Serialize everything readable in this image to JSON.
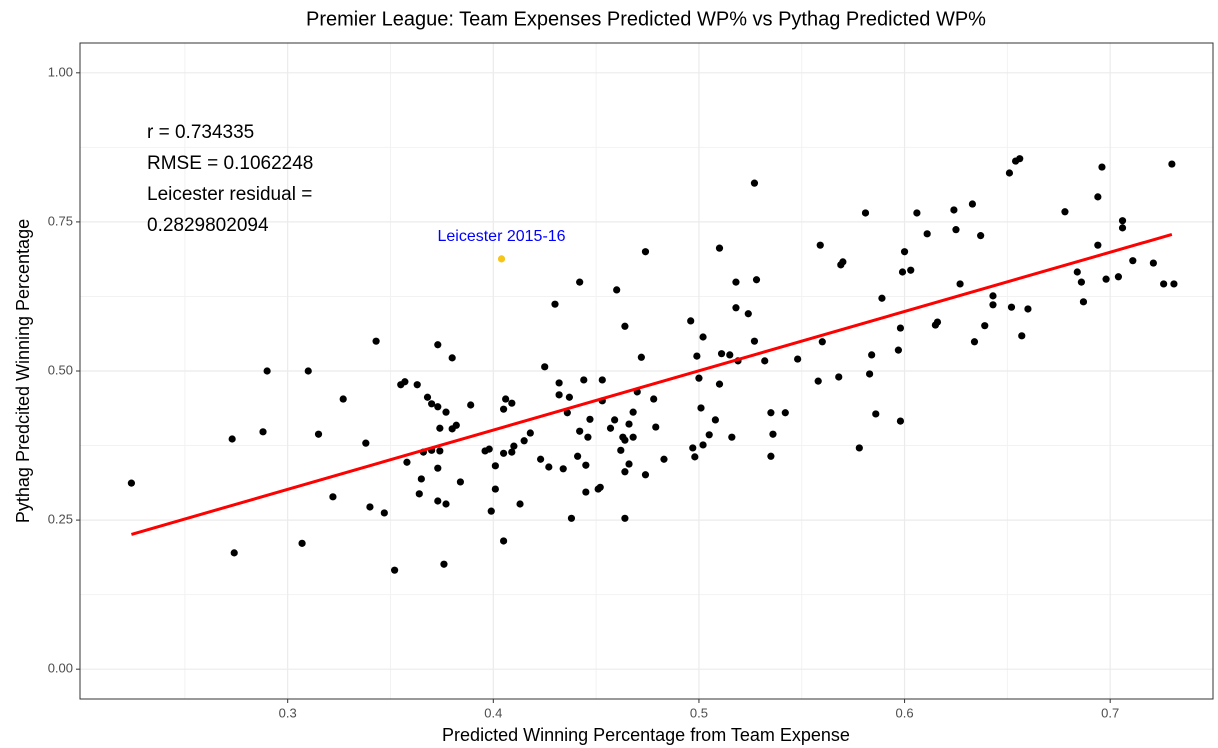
{
  "chart_data": {
    "type": "scatter",
    "title": "Premier League: Team Expenses Predicted WP% vs Pythag Predicted WP%",
    "xlabel": "Predicted Winning Percentage from Team Expense",
    "ylabel": "Pythag Predcited Winning Percentage",
    "annotation_lines": [
      "r =  0.734335",
      "RMSE = 0.1062248",
      "Leicester residual =",
      "0.2829802094"
    ],
    "xlim": [
      0.199,
      0.75
    ],
    "ylim": [
      -0.05,
      1.05
    ],
    "xticks": [
      0.3,
      0.4,
      0.5,
      0.6,
      0.7
    ],
    "yticks": [
      {
        "value": 0,
        "label": "0.00"
      },
      0.25,
      {
        "value": 0.5,
        "label": "0.50"
      },
      0.75,
      {
        "value": 1,
        "label": "1.00"
      }
    ],
    "grid": true,
    "minor_grid": true,
    "series": [
      {
        "color": "#000000",
        "x": [
          0.224,
          0.273,
          0.274,
          0.288,
          0.29,
          0.307,
          0.31,
          0.315,
          0.322,
          0.327,
          0.338,
          0.34,
          0.343,
          0.347,
          0.352,
          0.355,
          0.357,
          0.358,
          0.363,
          0.365,
          0.364,
          0.366,
          0.368,
          0.37,
          0.37,
          0.373,
          0.373,
          0.373,
          0.374,
          0.374,
          0.373,
          0.376,
          0.377,
          0.377,
          0.38,
          0.38,
          0.382,
          0.384,
          0.389,
          0.396,
          0.398,
          0.399,
          0.401,
          0.401,
          0.405,
          0.405,
          0.405,
          0.406,
          0.409,
          0.409,
          0.41,
          0.413,
          0.415,
          0.418,
          0.423,
          0.425,
          0.427,
          0.43,
          0.432,
          0.432,
          0.434,
          0.436,
          0.437,
          0.438,
          0.441,
          0.442,
          0.442,
          0.444,
          0.445,
          0.445,
          0.446,
          0.447,
          0.451,
          0.452,
          0.453,
          0.453,
          0.457,
          0.459,
          0.46,
          0.462,
          0.463,
          0.464,
          0.464,
          0.464,
          0.464,
          0.466,
          0.466,
          0.468,
          0.468,
          0.47,
          0.472,
          0.474,
          0.474,
          0.478,
          0.479,
          0.483,
          0.496,
          0.497,
          0.498,
          0.499,
          0.5,
          0.501,
          0.502,
          0.502,
          0.505,
          0.508,
          0.51,
          0.51,
          0.511,
          0.515,
          0.516,
          0.518,
          0.518,
          0.519,
          0.524,
          0.527,
          0.527,
          0.528,
          0.532,
          0.535,
          0.536,
          0.535,
          0.542,
          0.548,
          0.558,
          0.559,
          0.56,
          0.568,
          0.569,
          0.57,
          0.578,
          0.581,
          0.583,
          0.584,
          0.586,
          0.589,
          0.597,
          0.598,
          0.598,
          0.599,
          0.6,
          0.603,
          0.606,
          0.611,
          0.615,
          0.616,
          0.624,
          0.625,
          0.627,
          0.633,
          0.634,
          0.637,
          0.639,
          0.643,
          0.643,
          0.651,
          0.652,
          0.654,
          0.656,
          0.657,
          0.66,
          0.678,
          0.684,
          0.686,
          0.687,
          0.694,
          0.694,
          0.696,
          0.698,
          0.704,
          0.706,
          0.706,
          0.711,
          0.721,
          0.726,
          0.73,
          0.731
        ],
        "values": [
          0.312,
          0.386,
          0.195,
          0.398,
          0.5,
          0.211,
          0.5,
          0.394,
          0.289,
          0.453,
          0.379,
          0.272,
          0.55,
          0.262,
          0.166,
          0.477,
          0.482,
          0.347,
          0.477,
          0.319,
          0.294,
          0.364,
          0.456,
          0.445,
          0.367,
          0.337,
          0.544,
          0.44,
          0.404,
          0.366,
          0.282,
          0.176,
          0.277,
          0.431,
          0.403,
          0.522,
          0.409,
          0.314,
          0.443,
          0.366,
          0.369,
          0.265,
          0.341,
          0.302,
          0.215,
          0.362,
          0.436,
          0.453,
          0.446,
          0.364,
          0.374,
          0.277,
          0.383,
          0.396,
          0.352,
          0.507,
          0.339,
          0.612,
          0.48,
          0.46,
          0.336,
          0.43,
          0.456,
          0.253,
          0.357,
          0.399,
          0.649,
          0.485,
          0.342,
          0.297,
          0.389,
          0.419,
          0.302,
          0.305,
          0.485,
          0.45,
          0.404,
          0.418,
          0.636,
          0.367,
          0.389,
          0.384,
          0.331,
          0.253,
          0.575,
          0.411,
          0.344,
          0.389,
          0.431,
          0.465,
          0.523,
          0.326,
          0.7,
          0.453,
          0.406,
          0.352,
          0.584,
          0.371,
          0.356,
          0.525,
          0.488,
          0.438,
          0.557,
          0.376,
          0.393,
          0.418,
          0.478,
          0.706,
          0.529,
          0.527,
          0.389,
          0.649,
          0.606,
          0.517,
          0.596,
          0.815,
          0.55,
          0.653,
          0.517,
          0.43,
          0.394,
          0.357,
          0.43,
          0.52,
          0.483,
          0.711,
          0.549,
          0.49,
          0.678,
          0.683,
          0.371,
          0.765,
          0.495,
          0.527,
          0.428,
          0.622,
          0.535,
          0.572,
          0.416,
          0.666,
          0.7,
          0.669,
          0.765,
          0.73,
          0.577,
          0.582,
          0.77,
          0.737,
          0.646,
          0.78,
          0.549,
          0.727,
          0.576,
          0.611,
          0.626,
          0.832,
          0.607,
          0.852,
          0.856,
          0.559,
          0.604,
          0.767,
          0.666,
          0.649,
          0.616,
          0.711,
          0.792,
          0.842,
          0.654,
          0.658,
          0.74,
          0.752,
          0.685,
          0.681,
          0.646,
          0.847,
          0.646
        ]
      },
      {
        "color": "#f5c518",
        "x": [
          0.404
        ],
        "values": [
          0.688
        ],
        "labels": [
          "Leicester 2015-16"
        ],
        "label_color": "#0000ff"
      }
    ],
    "fit_line": {
      "color": "#ff0000",
      "x": [
        0.224,
        0.73
      ],
      "values": [
        0.226,
        0.729
      ]
    }
  }
}
